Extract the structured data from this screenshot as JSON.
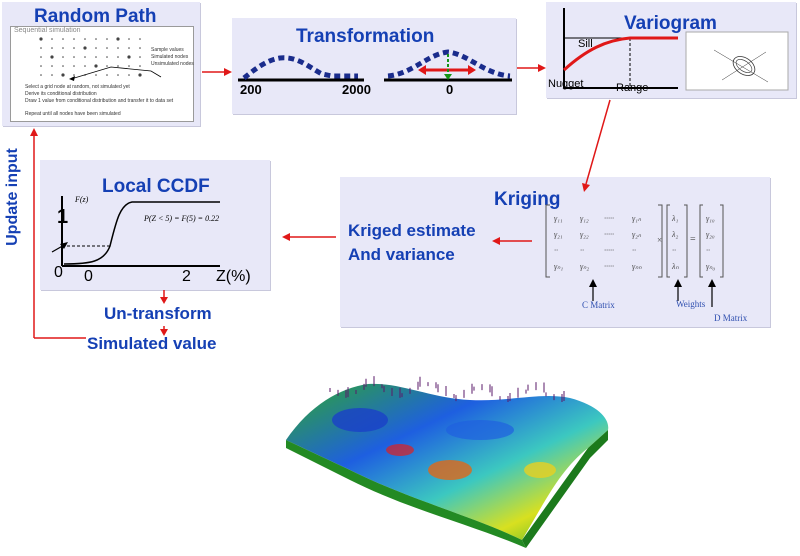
{
  "random_path": {
    "title": "Random Path",
    "slide_title": "Sequential simulation",
    "legend": [
      "Sample values",
      "Simulated nodes",
      "Unsimulated nodes"
    ],
    "bullets": [
      "Select a grid node at random, not simulated yet",
      "Derive its conditional distribution",
      "Draw 1 value from conditional distribution and transfer it to data set",
      "Repeat until all nodes have been simulated"
    ]
  },
  "transformation": {
    "title": "Transformation",
    "x_left_start": "200",
    "x_left_end": "2000",
    "x_right": "0"
  },
  "variogram": {
    "title": "Variogram",
    "sill": "Sill",
    "nugget": "Nugget",
    "range": "Range"
  },
  "kriging": {
    "title": "Kriging",
    "estimate_line1": "Kriged estimate",
    "estimate_line2": "And variance",
    "c_matrix": "C Matrix",
    "weights": "Weights",
    "d_matrix": "D Matrix",
    "multiply": "×",
    "equals": "="
  },
  "local_ccdf": {
    "title": "Local CCDF",
    "y_axis": "F(z)",
    "y_one": "1",
    "x_zero_outer": "0",
    "x_zero": "0",
    "x_two": "2",
    "x_label": "Z(%)",
    "formula": "P(Z < 5) = F(5) = 0.22"
  },
  "flow": {
    "update_input": "Update input",
    "un_transform": "Un-transform",
    "simulated_value": "Simulated value"
  },
  "colors": {
    "panel": "#e8e8f8",
    "title_blue": "#1540b4",
    "arrow_red": "#e01818",
    "curve_navy": "#1a2c8c"
  }
}
